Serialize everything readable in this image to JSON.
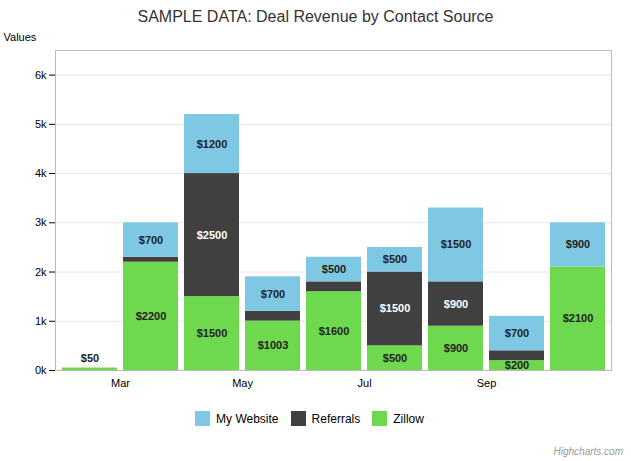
{
  "chart_data": {
    "type": "bar",
    "title": "SAMPLE DATA: Deal Revenue by Contact Source",
    "ylabel": "Values",
    "categories": [
      "Mar",
      null,
      "May",
      null,
      "Jul",
      null,
      "Sep",
      null,
      null
    ],
    "series": [
      {
        "name": "Zillow",
        "color": "#6ed84f",
        "values": [
          50,
          2200,
          1500,
          1003,
          1600,
          500,
          900,
          200,
          2100
        ],
        "value_labels": [
          "$50",
          "$2200",
          "$1500",
          "$1003",
          "$1600",
          "$500",
          "$900",
          "$200",
          "$2100"
        ]
      },
      {
        "name": "Referrals",
        "color": "#404040",
        "values": [
          0,
          100,
          2500,
          200,
          200,
          1500,
          900,
          200,
          0
        ],
        "value_labels": [
          null,
          null,
          "$2500",
          null,
          null,
          "$1500",
          "$900",
          null,
          null
        ]
      },
      {
        "name": "My Website",
        "color": "#7ec8e3",
        "values": [
          0,
          700,
          1200,
          700,
          500,
          500,
          1500,
          700,
          900
        ],
        "value_labels": [
          null,
          "$700",
          "$1200",
          "$700",
          "$500",
          "$500",
          "$1500",
          "$700",
          "$900"
        ]
      }
    ],
    "stacked": true,
    "data_labels": true,
    "ylim": [
      0,
      6500
    ],
    "yticks": [
      {
        "value": 0,
        "label": "0k"
      },
      {
        "value": 1000,
        "label": "1k"
      },
      {
        "value": 2000,
        "label": "2k"
      },
      {
        "value": 3000,
        "label": "3k"
      },
      {
        "value": 4000,
        "label": "4k"
      },
      {
        "value": 5000,
        "label": "5k"
      },
      {
        "value": 6000,
        "label": "6k"
      }
    ],
    "grid": true,
    "legend": "bottom",
    "annotations": [
      "Highcharts.com"
    ]
  }
}
